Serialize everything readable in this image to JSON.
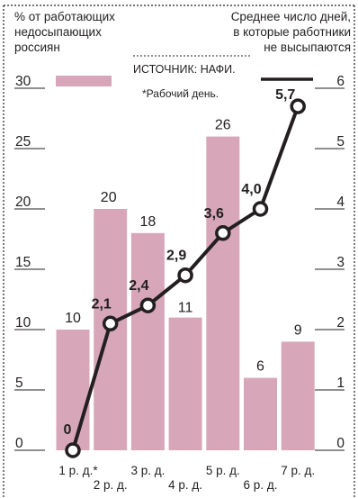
{
  "chart_data": {
    "type": "bar+line",
    "left_axis_label": [
      "% от работающих",
      "недосыпающих",
      "россиян"
    ],
    "right_axis_label": [
      "Среднее число дней,",
      "в которые  работники",
      "не высыпаются"
    ],
    "left_ticks": [
      "30",
      "25",
      "20",
      "15",
      "10",
      "5",
      "0"
    ],
    "right_ticks": [
      "6",
      "5",
      "4",
      "3",
      "2",
      "1",
      "0"
    ],
    "left_ylim": [
      0,
      30
    ],
    "right_ylim": [
      0,
      6
    ],
    "source": "ИСТОЧНИК: НАФИ.",
    "note": "*Рабочий день.",
    "categories": [
      "1 р. д.*",
      "2 р. д.",
      "3 р. д.",
      "4 р. д.",
      "5 р. д.",
      "6 р. д.",
      "7 р. д."
    ],
    "bar_values": [
      10,
      20,
      18,
      11,
      26,
      6,
      9
    ],
    "bar_labels": [
      "10",
      "20",
      "18",
      "11",
      "26",
      "6",
      "9"
    ],
    "line_values": [
      0,
      2.1,
      2.4,
      2.9,
      3.6,
      4.0,
      5.7
    ],
    "line_labels": [
      "0",
      "2,1",
      "2,4",
      "2,9",
      "3,6",
      "4,0",
      "5,7"
    ],
    "bar_color": "#d7a7b9",
    "line_color": "#231f20",
    "grid": false,
    "legend": "top"
  }
}
